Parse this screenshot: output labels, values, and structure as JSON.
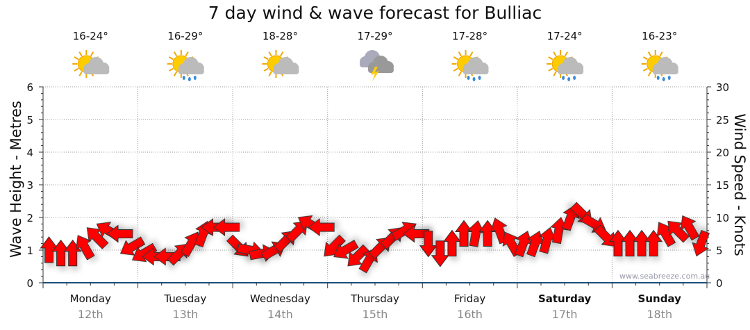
{
  "chart_data": {
    "type": "scatter",
    "title": "7 day wind & wave forecast for Bulliac",
    "ylabel": "Wave Height - Metres",
    "y2label": "Wind Speed - Knots",
    "ylim": [
      0,
      6
    ],
    "y2lim": [
      0,
      30
    ],
    "yticks": [
      "0",
      "1",
      "2",
      "3",
      "4",
      "5",
      "6"
    ],
    "y2ticks": [
      "0",
      "5",
      "10",
      "15",
      "20",
      "25",
      "30"
    ],
    "grid": true,
    "days": [
      {
        "name": "Monday",
        "date": "12th",
        "temp": "16-24°",
        "icon": "sun-cloud",
        "bold": false
      },
      {
        "name": "Tuesday",
        "date": "13th",
        "temp": "16-29°",
        "icon": "sun-cloud-rain",
        "bold": false
      },
      {
        "name": "Wednesday",
        "date": "14th",
        "temp": "18-28°",
        "icon": "sun-cloud",
        "bold": false
      },
      {
        "name": "Thursday",
        "date": "15th",
        "temp": "17-29°",
        "icon": "cloud-lightning",
        "bold": false
      },
      {
        "name": "Friday",
        "date": "16th",
        "temp": "17-28°",
        "icon": "sun-cloud-rain",
        "bold": false
      },
      {
        "name": "Saturday",
        "date": "17th",
        "temp": "17-24°",
        "icon": "sun-cloud-rain",
        "bold": true
      },
      {
        "name": "Sunday",
        "date": "18th",
        "temp": "16-23°",
        "icon": "sun-cloud-rain",
        "bold": true
      }
    ],
    "series": [
      {
        "name": "Wind",
        "color": "#ff0000",
        "wind_knots": [
          5,
          4.5,
          4.5,
          5.5,
          7,
          8,
          7.5,
          5.5,
          4.5,
          4,
          4,
          4.5,
          6,
          7.5,
          8.5,
          8.5,
          5.5,
          5,
          4.5,
          5,
          6.5,
          8,
          9,
          8.5,
          5.5,
          5,
          4,
          3.5,
          5.5,
          7,
          8,
          7.5,
          6,
          4.5,
          6,
          7.5,
          7.5,
          7.5,
          8,
          6,
          6,
          6,
          6.5,
          8,
          10,
          10.5,
          9,
          7,
          6,
          6,
          6,
          6,
          7.5,
          8,
          8.5,
          6
        ],
        "arrow_direction_deg": [
          0,
          0,
          0,
          330,
          315,
          300,
          270,
          240,
          240,
          270,
          270,
          45,
          30,
          20,
          270,
          270,
          135,
          100,
          80,
          60,
          45,
          45,
          300,
          270,
          225,
          240,
          225,
          30,
          45,
          45,
          60,
          270,
          180,
          180,
          0,
          0,
          10,
          0,
          340,
          330,
          20,
          20,
          15,
          10,
          20,
          135,
          120,
          135,
          0,
          0,
          0,
          0,
          330,
          315,
          330,
          200
        ]
      }
    ],
    "watermark": "www.seabreeze.com.au"
  }
}
